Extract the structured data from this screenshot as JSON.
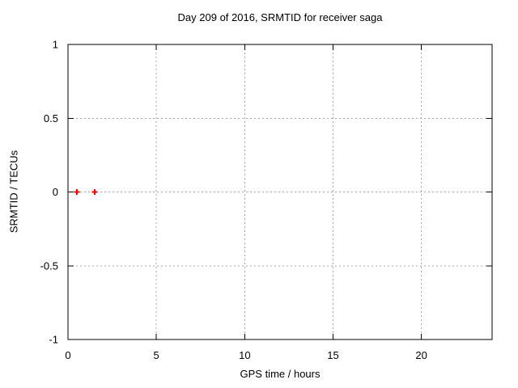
{
  "chart_data": {
    "type": "scatter",
    "title": "Day 209 of 2016, SRMTID for receiver saga",
    "xlabel": "GPS time / hours",
    "ylabel": "SRMTID / TECUs",
    "xlim": [
      0,
      24
    ],
    "ylim": [
      -1,
      1
    ],
    "xticks": [
      0,
      5,
      10,
      15,
      20
    ],
    "yticks": [
      -1,
      -0.5,
      0,
      0.5,
      1
    ],
    "grid": true,
    "legend_position": "none",
    "series": [
      {
        "name": "SRMTID",
        "marker": "plus",
        "color": "#ff0000",
        "points": [
          {
            "x": 0.5,
            "y": 0
          },
          {
            "x": 1.5,
            "y": 0
          }
        ]
      }
    ],
    "colors": {
      "frame": "#000000",
      "grid": "#a8a8a8",
      "text": "#000000",
      "background": "#ffffff",
      "marker": "#ff0000"
    }
  }
}
